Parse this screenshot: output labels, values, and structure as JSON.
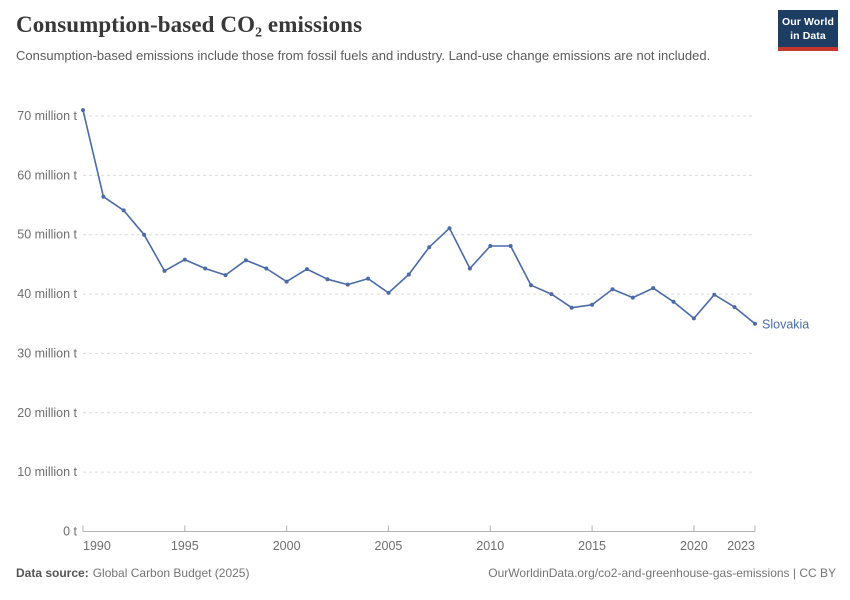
{
  "header": {
    "title": "Consumption-based CO₂ emissions",
    "subtitle": "Consumption-based emissions include those from fossil fuels and industry. Land-use change emissions are not included.",
    "logo": {
      "line1": "Our World",
      "line2": "in Data",
      "bg_color": "#1d3d63",
      "bar_color": "#c5372d"
    }
  },
  "chart_data": {
    "type": "line",
    "title": "Consumption-based CO₂ emissions",
    "entity": "Slovakia",
    "unit": "million t",
    "x": [
      1990,
      1991,
      1992,
      1993,
      1994,
      1995,
      1996,
      1997,
      1998,
      1999,
      2000,
      2001,
      2002,
      2003,
      2004,
      2005,
      2006,
      2007,
      2008,
      2009,
      2010,
      2011,
      2012,
      2013,
      2014,
      2015,
      2016,
      2017,
      2018,
      2019,
      2020,
      2021,
      2022,
      2023
    ],
    "values": [
      71.0,
      56.4,
      54.1,
      50.0,
      43.9,
      45.8,
      44.3,
      43.2,
      45.7,
      44.3,
      42.1,
      44.2,
      42.5,
      41.6,
      42.6,
      40.2,
      43.3,
      47.9,
      51.1,
      44.3,
      48.1,
      48.1,
      41.5,
      40.0,
      37.7,
      38.2,
      40.8,
      39.4,
      41.0,
      38.7,
      35.9,
      39.9,
      37.8,
      35.0
    ],
    "ylim": [
      0,
      70
    ],
    "yticks": [
      {
        "value": 0,
        "label": "0 t"
      },
      {
        "value": 10,
        "label": "10 million t"
      },
      {
        "value": 20,
        "label": "20 million t"
      },
      {
        "value": 30,
        "label": "30 million t"
      },
      {
        "value": 40,
        "label": "40 million t"
      },
      {
        "value": 50,
        "label": "50 million t"
      },
      {
        "value": 60,
        "label": "60 million t"
      },
      {
        "value": 70,
        "label": "70 million t"
      }
    ],
    "xticks": [
      1990,
      1995,
      2000,
      2005,
      2010,
      2015,
      2020,
      2023
    ],
    "grid": true,
    "legend_position": "end-of-line",
    "line_color": "#4c6ba5",
    "axis_label_color": "#6e6e6e",
    "gridline_color": "#dcdcdc",
    "axis_line_color": "#b3b3b3"
  },
  "footer": {
    "source_label": "Data source:",
    "source_value": "Global Carbon Budget (2025)",
    "right_text": "OurWorldinData.org/co2-and-greenhouse-gas-emissions | CC BY"
  }
}
